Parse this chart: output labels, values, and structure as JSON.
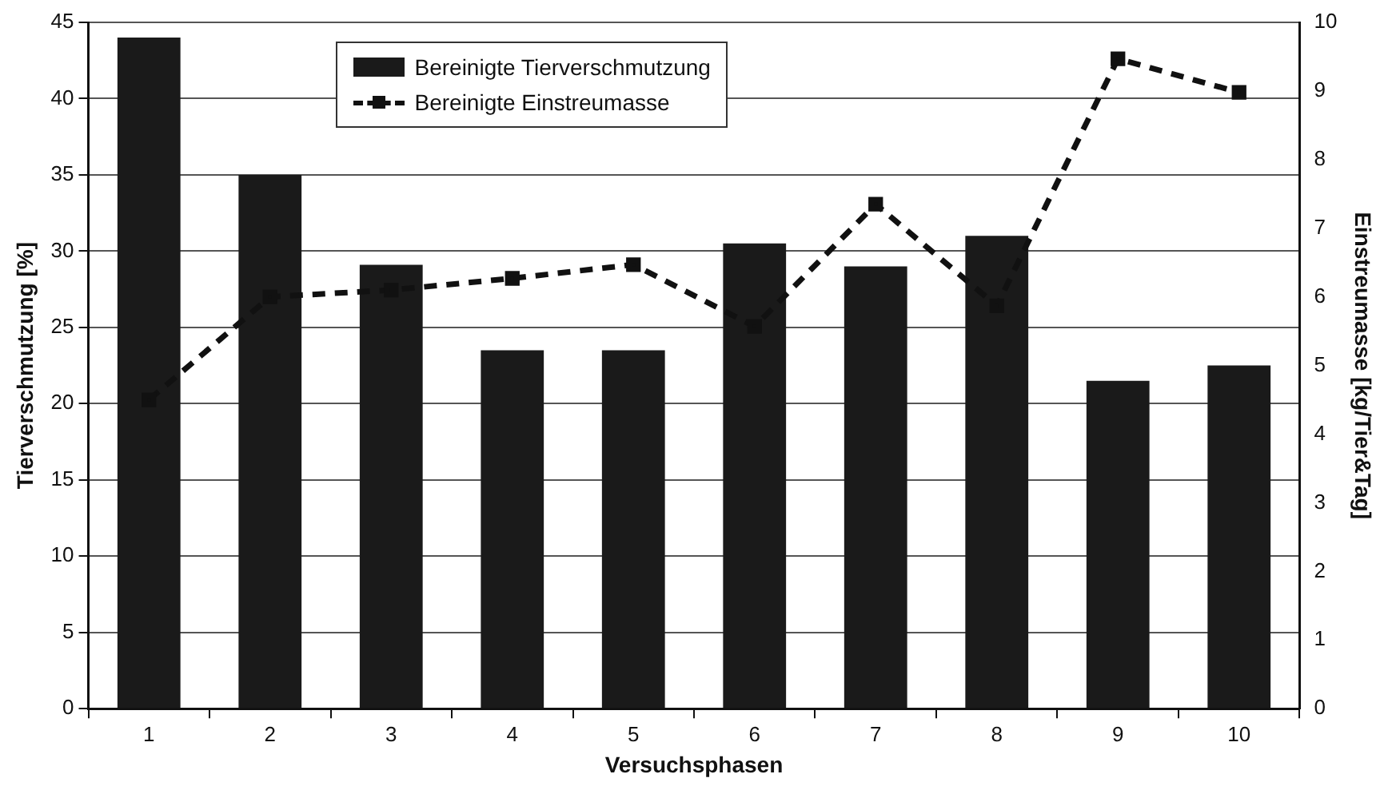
{
  "chart_data": {
    "type": "bar",
    "xlabel": "Versuchsphasen",
    "ylabel": "Tierverschmutzung [%]",
    "y2label": "Einstreumasse [kg/Tier&Tag]",
    "categories": [
      "1",
      "2",
      "3",
      "4",
      "5",
      "6",
      "7",
      "8",
      "9",
      "10"
    ],
    "series": [
      {
        "name": "Bereinigte Tierverschmutzung",
        "color": "#1a1a1a",
        "values": [
          44,
          35,
          29.1,
          23.5,
          23.5,
          30.5,
          29,
          31,
          21.5,
          22.5
        ]
      },
      {
        "name": "Bereinigte Einstreumasse",
        "type": "line",
        "axis": "y2",
        "color": "#111111",
        "marker": "square",
        "line_style": "dashed",
        "values": [
          4.5,
          6.0,
          6.1,
          6.27,
          6.47,
          5.57,
          7.35,
          5.87,
          9.47,
          8.98
        ]
      }
    ],
    "ylim": [
      0,
      45
    ],
    "yticks": [
      0,
      5,
      10,
      15,
      20,
      25,
      30,
      35,
      40,
      45
    ],
    "y2lim": [
      0,
      10
    ],
    "y2ticks": [
      0,
      1,
      2,
      3,
      4,
      5,
      6,
      7,
      8,
      9,
      10
    ],
    "grid": "y",
    "legend": "top left"
  }
}
